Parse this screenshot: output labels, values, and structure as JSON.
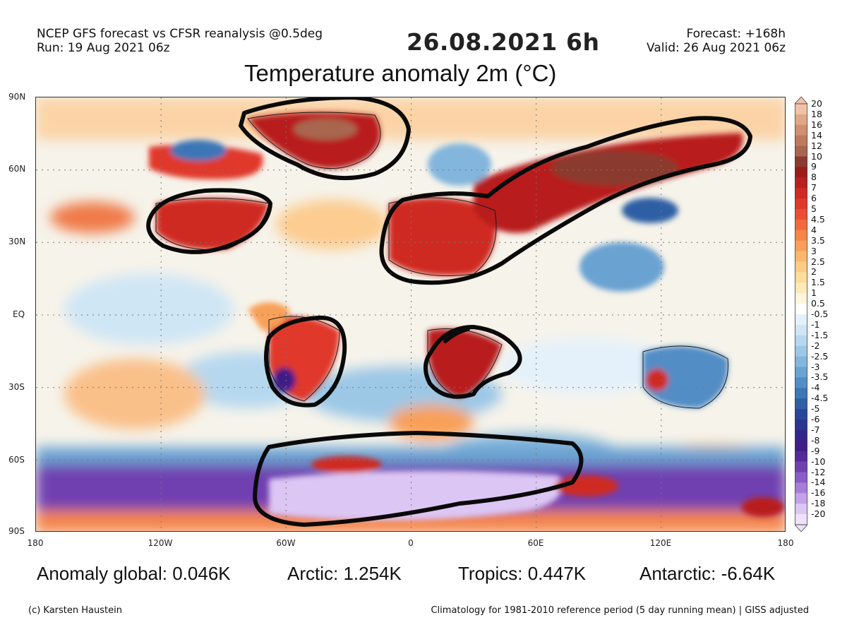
{
  "header": {
    "model_line": "NCEP GFS forecast vs CFSR reanalysis @0.5deg",
    "run_line": "Run: 19 Aug 2021 06z",
    "date": "26.08.2021",
    "hour": "6h",
    "forecast_line": "Forecast: +168h",
    "valid_line": "Valid: 26 Aug 2021 06z",
    "title": "Temperature anomaly 2m (°C)"
  },
  "axes": {
    "lat_labels": [
      "90N",
      "60N",
      "30N",
      "EQ",
      "30S",
      "60S",
      "90S"
    ],
    "lon_labels": [
      "180",
      "120W",
      "60W",
      "0",
      "60E",
      "120E",
      "180"
    ]
  },
  "colorbar": {
    "labels": [
      "20",
      "18",
      "16",
      "14",
      "12",
      "10",
      "9",
      "8",
      "7",
      "6",
      "5",
      "4.5",
      "4",
      "3.5",
      "3",
      "2.5",
      "2",
      "1.5",
      "1",
      "0.5",
      "-0.5",
      "-1",
      "-1.5",
      "-2",
      "-2.5",
      "-3",
      "-3.5",
      "-4",
      "-4.5",
      "-5",
      "-6",
      "-7",
      "-8",
      "-9",
      "-10",
      "-12",
      "-14",
      "-16",
      "-18",
      "-20"
    ],
    "colors": [
      "#f2c2a8",
      "#e0a888",
      "#cf8f70",
      "#bd7a5c",
      "#a86650",
      "#8a3a2e",
      "#9c1c1c",
      "#b81f1f",
      "#cf2a24",
      "#e0382a",
      "#ec4d34",
      "#f06a3c",
      "#f58548",
      "#f8a058",
      "#fab86c",
      "#fccc84",
      "#fddc9c",
      "#feeab8",
      "#fff6dc",
      "#ffffff",
      "#e4f1fa",
      "#cfe6f5",
      "#b6d8ef",
      "#9cc8e6",
      "#83b6dc",
      "#6aa2d2",
      "#538dc6",
      "#3e76b6",
      "#2f5fa4",
      "#28479a",
      "#2c3592",
      "#33268a",
      "#3f1f86",
      "#552a9a",
      "#7040b0",
      "#8a5cc8",
      "#a67ed8",
      "#c2a2e8",
      "#dcc6f4",
      "#eee2fb"
    ]
  },
  "stats": {
    "global": "Anomaly global: 0.046K",
    "arctic": "Arctic: 1.254K",
    "tropics": "Tropics: 0.447K",
    "antarctic": "Antarctic: -6.64K"
  },
  "footer": {
    "credit": "(c) Karsten Haustein",
    "climatology": "Climatology for 1981-2010 reference period (5 day running mean) | GISS adjusted"
  },
  "annotations": [
    {
      "region": "greenland",
      "shape": "ellipse"
    },
    {
      "region": "north-america",
      "shape": "ellipse"
    },
    {
      "region": "eurasia-north-africa",
      "shape": "band"
    },
    {
      "region": "south-america",
      "shape": "ellipse"
    },
    {
      "region": "southern-africa",
      "shape": "ellipse"
    },
    {
      "region": "antarctica",
      "shape": "band"
    }
  ]
}
